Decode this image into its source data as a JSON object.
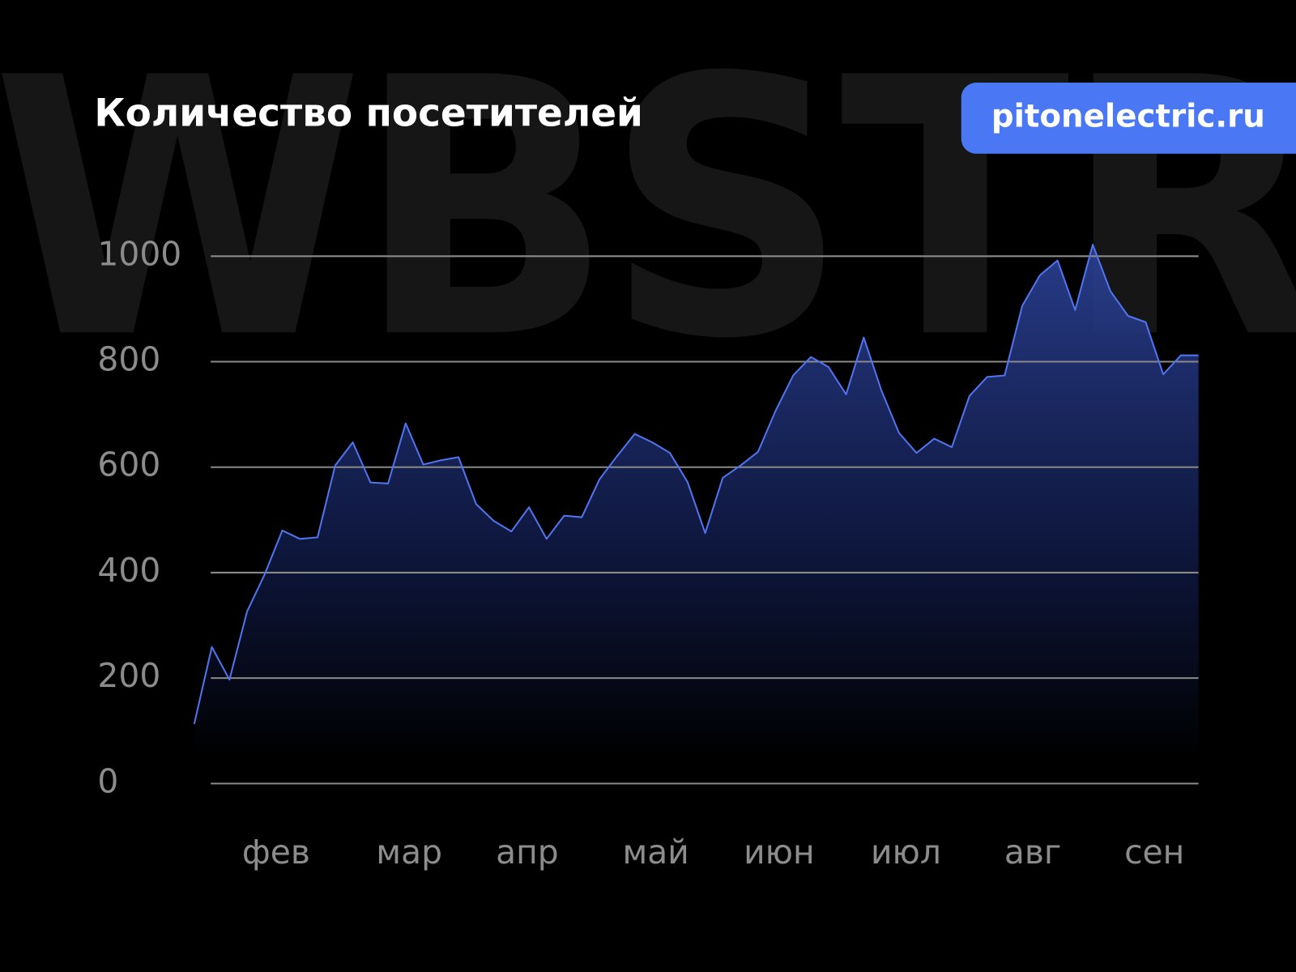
{
  "chart_data": {
    "type": "area",
    "title": "Количество посетителей",
    "badge": "pitonelectric.ru",
    "watermark": "WBSTR",
    "color": "#4f74ee",
    "grid": true,
    "values": [
      113,
      259,
      197,
      326,
      397,
      480,
      464,
      467,
      603,
      647,
      571,
      569,
      683,
      605,
      613,
      619,
      530,
      498,
      478,
      524,
      464,
      508,
      505,
      577,
      621,
      663,
      647,
      627,
      572,
      475,
      580,
      603,
      629,
      707,
      774,
      809,
      790,
      738,
      846,
      746,
      665,
      627,
      654,
      638,
      735,
      771,
      774,
      906,
      964,
      992,
      898,
      1022,
      934,
      887,
      875,
      776,
      812,
      812
    ],
    "xlim": [
      0,
      57
    ],
    "xticks": [
      {
        "value": 4.65,
        "label": "фев"
      },
      {
        "value": 12.2,
        "label": "мар"
      },
      {
        "value": 18.9,
        "label": "апр"
      },
      {
        "value": 26.2,
        "label": "май"
      },
      {
        "value": 33.2,
        "label": "июн"
      },
      {
        "value": 40.4,
        "label": "июл"
      },
      {
        "value": 47.6,
        "label": "авг"
      },
      {
        "value": 54.5,
        "label": "сен"
      }
    ],
    "ylim": [
      0,
      1000
    ],
    "yticks": [
      0,
      200,
      400,
      600,
      800,
      1000
    ]
  }
}
